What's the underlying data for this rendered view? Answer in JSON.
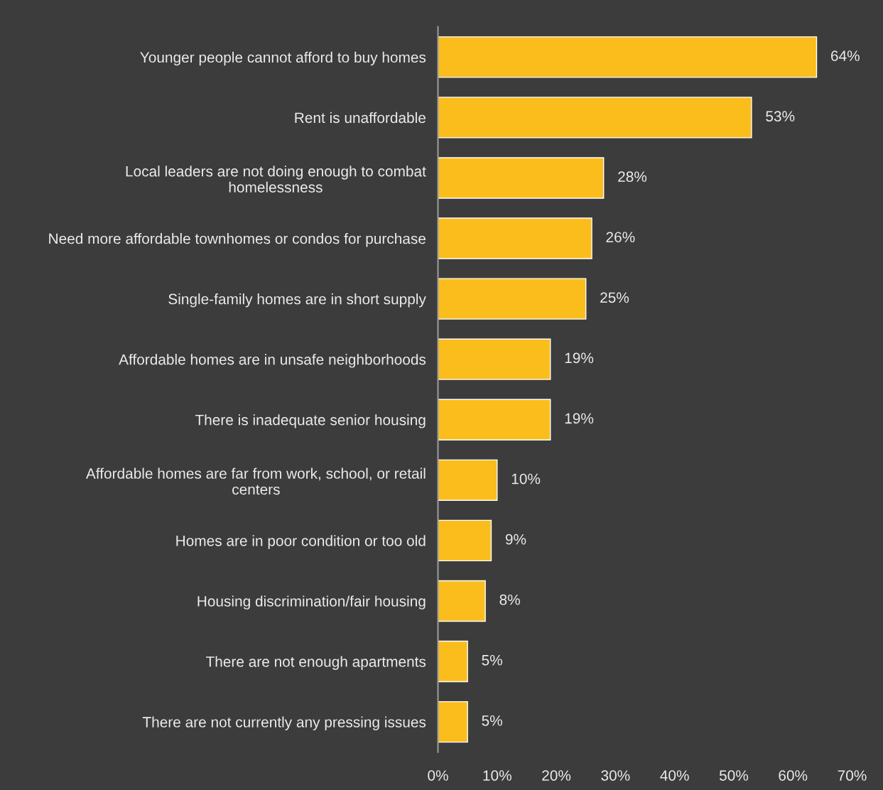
{
  "chart_data": {
    "type": "bar",
    "orientation": "horizontal",
    "categories": [
      "Younger people cannot afford to buy homes",
      "Rent is unaffordable",
      "Local leaders are not doing enough to combat\nhomelessness",
      "Need more affordable townhomes or condos for purchase",
      "Single-family homes are in short supply",
      "Affordable homes are in unsafe neighborhoods",
      "There is inadequate senior housing",
      "Affordable homes are far from work, school, or retail\ncenters",
      "Homes are in poor condition or too old",
      "Housing discrimination/fair housing",
      "There are not enough apartments",
      "There are not currently any pressing issues"
    ],
    "values": [
      64,
      53,
      28,
      26,
      25,
      19,
      19,
      10,
      9,
      8,
      5,
      5
    ],
    "value_labels": [
      "64%",
      "53%",
      "28%",
      "26%",
      "25%",
      "19%",
      "19%",
      "10%",
      "9%",
      "8%",
      "5%",
      "5%"
    ],
    "color": "#fbbd1c",
    "xlim": [
      0,
      70
    ],
    "xticks": [
      {
        "value": 0,
        "label": "0%"
      },
      {
        "value": 10,
        "label": "10%"
      },
      {
        "value": 20,
        "label": "20%"
      },
      {
        "value": 30,
        "label": "30%"
      },
      {
        "value": 40,
        "label": "40%"
      },
      {
        "value": 50,
        "label": "50%"
      },
      {
        "value": 60,
        "label": "60%"
      },
      {
        "value": 70,
        "label": "70%"
      }
    ],
    "grid": false
  }
}
